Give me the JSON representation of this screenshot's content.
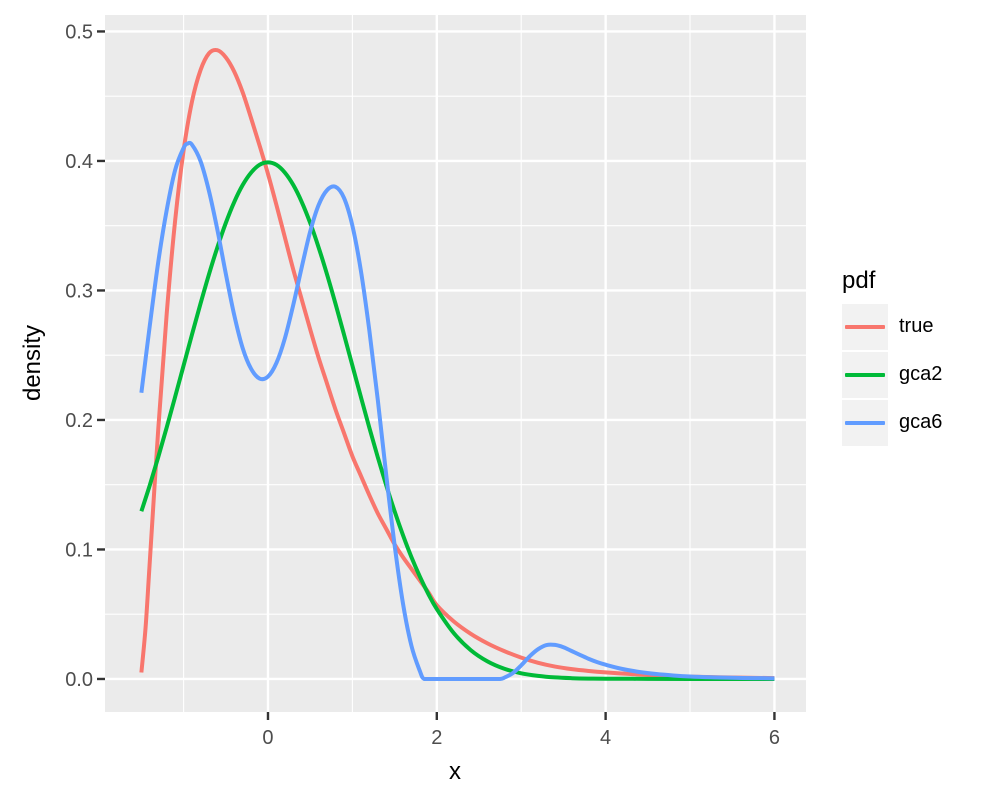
{
  "chart_data": {
    "type": "line",
    "title": "",
    "xlabel": "x",
    "ylabel": "density",
    "x_domain": [
      -1.931,
      6.374
    ],
    "y_domain": [
      -0.0255,
      0.5127
    ],
    "x_ticks": {
      "values": [
        0,
        2,
        4,
        6
      ],
      "labels": [
        "0",
        "2",
        "4",
        "6"
      ]
    },
    "y_ticks": {
      "values": [
        0.0,
        0.1,
        0.2,
        0.3,
        0.4,
        0.5
      ],
      "labels": [
        "0.0",
        "0.1",
        "0.2",
        "0.3",
        "0.4",
        "0.5"
      ]
    },
    "x_minor": [
      -1,
      1,
      3,
      5
    ],
    "y_minor": [
      0.05,
      0.15,
      0.25,
      0.35,
      0.45
    ],
    "grid": "on",
    "panel": {
      "bg": "#EBEBEB",
      "grid_major": "#FFFFFF",
      "grid_minor": "#FFFFFF",
      "tick_color": "#333333",
      "tick_label_color": "#4D4D4D",
      "key_bg": "#F2F2F2"
    },
    "legend": {
      "title": "pdf",
      "position": "right"
    },
    "series": [
      {
        "name": "true",
        "color": "#F8766D",
        "points": [
          [
            -1.5,
            0.005
          ],
          [
            -1.45,
            0.04
          ],
          [
            -1.4,
            0.091
          ],
          [
            -1.3,
            0.193
          ],
          [
            -1.2,
            0.282
          ],
          [
            -1.1,
            0.354
          ],
          [
            -1.0,
            0.408
          ],
          [
            -0.9,
            0.446
          ],
          [
            -0.8,
            0.47
          ],
          [
            -0.7,
            0.483
          ],
          [
            -0.6,
            0.4855
          ],
          [
            -0.5,
            0.48
          ],
          [
            -0.4,
            0.469
          ],
          [
            -0.3,
            0.453
          ],
          [
            -0.2,
            0.433
          ],
          [
            -0.1,
            0.412
          ],
          [
            0,
            0.39
          ],
          [
            0.1,
            0.366
          ],
          [
            0.2,
            0.341
          ],
          [
            0.3,
            0.316
          ],
          [
            0.4,
            0.293
          ],
          [
            0.5,
            0.27
          ],
          [
            0.6,
            0.248
          ],
          [
            0.7,
            0.228
          ],
          [
            0.8,
            0.208
          ],
          [
            0.9,
            0.19
          ],
          [
            1.0,
            0.172
          ],
          [
            1.1,
            0.157
          ],
          [
            1.2,
            0.142
          ],
          [
            1.3,
            0.128
          ],
          [
            1.4,
            0.116
          ],
          [
            1.5,
            0.104
          ],
          [
            1.6,
            0.094
          ],
          [
            1.7,
            0.085
          ],
          [
            1.8,
            0.076
          ],
          [
            1.9,
            0.067
          ],
          [
            2.0,
            0.057
          ],
          [
            2.2,
            0.0445
          ],
          [
            2.4,
            0.035
          ],
          [
            2.6,
            0.0275
          ],
          [
            2.8,
            0.0215
          ],
          [
            3.0,
            0.0165
          ],
          [
            3.2,
            0.0125
          ],
          [
            3.4,
            0.0096
          ],
          [
            3.6,
            0.0076
          ],
          [
            3.8,
            0.0062
          ],
          [
            4.0,
            0.0051
          ],
          [
            4.25,
            0.004
          ],
          [
            4.5,
            0.0031
          ],
          [
            4.75,
            0.0024
          ],
          [
            5.0,
            0.0018
          ],
          [
            5.5,
            0.0011
          ],
          [
            6.0,
            0.0007
          ]
        ]
      },
      {
        "name": "gca2",
        "color": "#00BA38",
        "points": [
          [
            -1.5,
            0.1295
          ],
          [
            -1.4,
            0.1497
          ],
          [
            -1.3,
            0.1714
          ],
          [
            -1.2,
            0.1942
          ],
          [
            -1.1,
            0.2179
          ],
          [
            -1.0,
            0.242
          ],
          [
            -0.9,
            0.2661
          ],
          [
            -0.8,
            0.2897
          ],
          [
            -0.7,
            0.3123
          ],
          [
            -0.6,
            0.3332
          ],
          [
            -0.5,
            0.3521
          ],
          [
            -0.4,
            0.3683
          ],
          [
            -0.3,
            0.3814
          ],
          [
            -0.2,
            0.391
          ],
          [
            -0.1,
            0.397
          ],
          [
            0,
            0.3989
          ],
          [
            0.1,
            0.397
          ],
          [
            0.2,
            0.391
          ],
          [
            0.3,
            0.3814
          ],
          [
            0.4,
            0.3683
          ],
          [
            0.5,
            0.3521
          ],
          [
            0.6,
            0.3332
          ],
          [
            0.7,
            0.3123
          ],
          [
            0.8,
            0.2897
          ],
          [
            0.9,
            0.2661
          ],
          [
            1.0,
            0.242
          ],
          [
            1.1,
            0.2179
          ],
          [
            1.2,
            0.1942
          ],
          [
            1.3,
            0.1714
          ],
          [
            1.4,
            0.1497
          ],
          [
            1.5,
            0.1295
          ],
          [
            1.6,
            0.1109
          ],
          [
            1.7,
            0.094
          ],
          [
            1.8,
            0.079
          ],
          [
            1.9,
            0.0656
          ],
          [
            2.0,
            0.054
          ],
          [
            2.2,
            0.0355
          ],
          [
            2.4,
            0.0224
          ],
          [
            2.6,
            0.0136
          ],
          [
            2.8,
            0.0079
          ],
          [
            3.0,
            0.0044
          ],
          [
            3.2,
            0.0024
          ],
          [
            3.4,
            0.0012
          ],
          [
            3.6,
            0.0006
          ],
          [
            3.8,
            0.0003
          ],
          [
            4.0,
            0.0002
          ],
          [
            4.5,
            0.0001
          ],
          [
            5.0,
            0
          ],
          [
            5.5,
            0
          ],
          [
            6.0,
            0
          ]
        ]
      },
      {
        "name": "gca6",
        "color": "#619CFF",
        "points": [
          [
            -1.5,
            0.221
          ],
          [
            -1.4,
            0.273
          ],
          [
            -1.3,
            0.322
          ],
          [
            -1.2,
            0.362
          ],
          [
            -1.1,
            0.393
          ],
          [
            -1.0,
            0.41
          ],
          [
            -0.95,
            0.4135
          ],
          [
            -0.9,
            0.4125
          ],
          [
            -0.8,
            0.4
          ],
          [
            -0.7,
            0.377
          ],
          [
            -0.6,
            0.347
          ],
          [
            -0.5,
            0.313
          ],
          [
            -0.4,
            0.281
          ],
          [
            -0.3,
            0.2555
          ],
          [
            -0.2,
            0.2395
          ],
          [
            -0.1,
            0.232
          ],
          [
            0,
            0.2335
          ],
          [
            0.1,
            0.244
          ],
          [
            0.2,
            0.263
          ],
          [
            0.3,
            0.289
          ],
          [
            0.4,
            0.318
          ],
          [
            0.5,
            0.3455
          ],
          [
            0.6,
            0.366
          ],
          [
            0.7,
            0.3775
          ],
          [
            0.8,
            0.38
          ],
          [
            0.9,
            0.3715
          ],
          [
            1.0,
            0.35
          ],
          [
            1.1,
            0.3155
          ],
          [
            1.2,
            0.2695
          ],
          [
            1.3,
            0.216
          ],
          [
            1.4,
            0.158
          ],
          [
            1.5,
            0.1035
          ],
          [
            1.6,
            0.058
          ],
          [
            1.7,
            0.0255
          ],
          [
            1.8,
            0.006
          ],
          [
            1.85,
            0
          ],
          [
            1.95,
            0
          ],
          [
            2.1,
            0
          ],
          [
            2.3,
            0
          ],
          [
            2.5,
            0
          ],
          [
            2.65,
            0
          ],
          [
            2.75,
            0
          ],
          [
            2.8,
            0.001
          ],
          [
            2.9,
            0.0045
          ],
          [
            3.0,
            0.0105
          ],
          [
            3.1,
            0.0175
          ],
          [
            3.2,
            0.023
          ],
          [
            3.3,
            0.0262
          ],
          [
            3.4,
            0.0263
          ],
          [
            3.5,
            0.0245
          ],
          [
            3.6,
            0.0215
          ],
          [
            3.7,
            0.0185
          ],
          [
            3.8,
            0.0155
          ],
          [
            3.9,
            0.013
          ],
          [
            4.0,
            0.011
          ],
          [
            4.2,
            0.0077
          ],
          [
            4.4,
            0.0054
          ],
          [
            4.6,
            0.0038
          ],
          [
            4.8,
            0.0027
          ],
          [
            5.0,
            0.0019
          ],
          [
            5.25,
            0.0013
          ],
          [
            5.5,
            0.0009
          ],
          [
            5.75,
            0.0007
          ],
          [
            6.0,
            0.0005
          ]
        ]
      }
    ]
  }
}
